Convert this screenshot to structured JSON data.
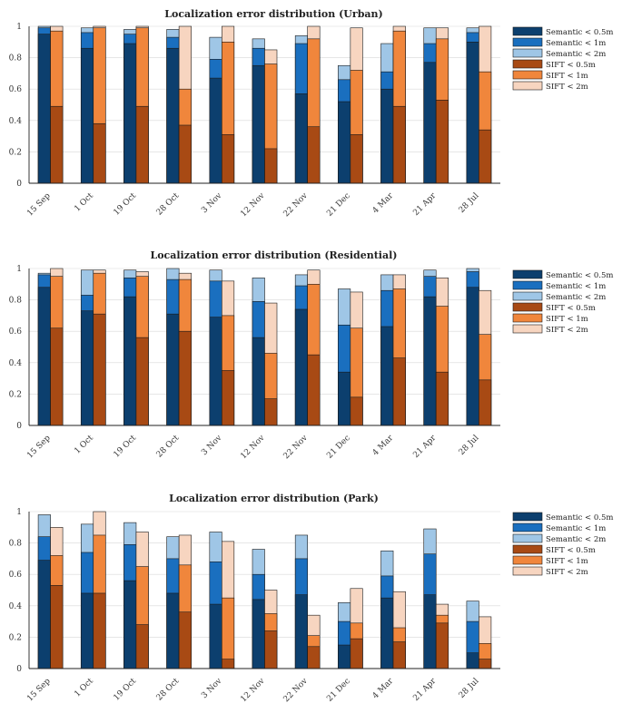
{
  "colors": {
    "semantic_05": "#0c3f6e",
    "semantic_1": "#1a6fbf",
    "semantic_2": "#9fc6e6",
    "sift_05": "#a84a14",
    "sift_1": "#f0863c",
    "sift_2": "#f7d5c0"
  },
  "legend_labels": [
    "Semantic < 0.5m",
    "Semantic < 1m",
    "Semantic < 2m",
    "SIFT < 0.5m",
    "SIFT < 1m",
    "SIFT < 2m"
  ],
  "chart_data": [
    {
      "type": "bar",
      "title": "Localization error distribution (Urban)",
      "categories": [
        "15 Sep",
        "1 Oct",
        "19 Oct",
        "28 Oct",
        "3 Nov",
        "12 Nov",
        "22 Nov",
        "21 Dec",
        "4 Mar",
        "21 Apr",
        "28 Jul"
      ],
      "ylim": [
        0,
        1
      ],
      "yticks": [
        "0",
        "0.2",
        "0.4",
        "0.6",
        "0.8",
        "1"
      ],
      "grid": true,
      "legend_position": "right",
      "series": [
        {
          "name": "Semantic < 0.5m",
          "values": [
            0.95,
            0.86,
            0.89,
            0.86,
            0.67,
            0.75,
            0.57,
            0.52,
            0.6,
            0.77,
            0.9
          ]
        },
        {
          "name": "Semantic < 1m",
          "values": [
            0.99,
            0.96,
            0.95,
            0.93,
            0.79,
            0.86,
            0.89,
            0.66,
            0.71,
            0.89,
            0.96
          ]
        },
        {
          "name": "Semantic < 2m",
          "values": [
            1.0,
            0.99,
            0.98,
            0.98,
            0.93,
            0.92,
            0.94,
            0.75,
            0.89,
            0.99,
            0.99
          ]
        },
        {
          "name": "SIFT < 0.5m",
          "values": [
            0.49,
            0.38,
            0.49,
            0.37,
            0.31,
            0.22,
            0.36,
            0.31,
            0.49,
            0.53,
            0.34
          ]
        },
        {
          "name": "SIFT < 1m",
          "values": [
            0.97,
            0.99,
            0.99,
            0.6,
            0.9,
            0.76,
            0.92,
            0.72,
            0.97,
            0.92,
            0.71
          ]
        },
        {
          "name": "SIFT < 2m",
          "values": [
            1.0,
            1.0,
            1.0,
            1.0,
            1.0,
            0.85,
            1.0,
            0.99,
            1.0,
            0.99,
            1.0
          ]
        }
      ]
    },
    {
      "type": "bar",
      "title": "Localization error distribution (Residential)",
      "categories": [
        "15 Sep",
        "1 Oct",
        "19 Oct",
        "28 Oct",
        "3 Nov",
        "12 Nov",
        "22 Nov",
        "21 Dec",
        "4 Mar",
        "21 Apr",
        "28 Jul"
      ],
      "ylim": [
        0,
        1
      ],
      "yticks": [
        "0",
        "0.2",
        "0.4",
        "0.6",
        "0.8",
        "1"
      ],
      "grid": true,
      "legend_position": "right",
      "series": [
        {
          "name": "Semantic < 0.5m",
          "values": [
            0.88,
            0.73,
            0.82,
            0.71,
            0.69,
            0.56,
            0.74,
            0.34,
            0.63,
            0.82,
            0.88
          ]
        },
        {
          "name": "Semantic < 1m",
          "values": [
            0.96,
            0.83,
            0.94,
            0.93,
            0.92,
            0.79,
            0.89,
            0.64,
            0.86,
            0.95,
            0.98
          ]
        },
        {
          "name": "Semantic < 2m",
          "values": [
            0.97,
            0.99,
            0.99,
            1.0,
            0.99,
            0.94,
            0.96,
            0.87,
            0.96,
            0.99,
            1.0
          ]
        },
        {
          "name": "SIFT < 0.5m",
          "values": [
            0.62,
            0.71,
            0.56,
            0.6,
            0.35,
            0.17,
            0.45,
            0.18,
            0.43,
            0.34,
            0.29
          ]
        },
        {
          "name": "SIFT < 1m",
          "values": [
            0.95,
            0.97,
            0.95,
            0.93,
            0.7,
            0.46,
            0.9,
            0.62,
            0.87,
            0.76,
            0.58
          ]
        },
        {
          "name": "SIFT < 2m",
          "values": [
            1.0,
            0.99,
            0.98,
            0.97,
            0.92,
            0.78,
            0.99,
            0.85,
            0.96,
            0.94,
            0.86
          ]
        }
      ]
    },
    {
      "type": "bar",
      "title": "Localization error distribution (Park)",
      "categories": [
        "15 Sep",
        "1 Oct",
        "19 Oct",
        "28 Oct",
        "3 Nov",
        "12 Nov",
        "22 Nov",
        "21 Dec",
        "4 Mar",
        "21 Apr",
        "28 Jul"
      ],
      "ylim": [
        0,
        1
      ],
      "yticks": [
        "0",
        "0.2",
        "0.4",
        "0.6",
        "0.8",
        "1"
      ],
      "grid": true,
      "legend_position": "right",
      "series": [
        {
          "name": "Semantic < 0.5m",
          "values": [
            0.69,
            0.48,
            0.56,
            0.48,
            0.41,
            0.44,
            0.47,
            0.15,
            0.45,
            0.47,
            0.1
          ]
        },
        {
          "name": "Semantic < 1m",
          "values": [
            0.84,
            0.74,
            0.79,
            0.7,
            0.68,
            0.6,
            0.7,
            0.3,
            0.59,
            0.73,
            0.3
          ]
        },
        {
          "name": "Semantic < 2m",
          "values": [
            0.98,
            0.92,
            0.93,
            0.84,
            0.87,
            0.76,
            0.85,
            0.42,
            0.75,
            0.89,
            0.43
          ]
        },
        {
          "name": "SIFT < 0.5m",
          "values": [
            0.53,
            0.48,
            0.28,
            0.36,
            0.06,
            0.24,
            0.14,
            0.19,
            0.17,
            0.29,
            0.06
          ]
        },
        {
          "name": "SIFT < 1m",
          "values": [
            0.72,
            0.85,
            0.65,
            0.66,
            0.45,
            0.35,
            0.21,
            0.29,
            0.26,
            0.34,
            0.16
          ]
        },
        {
          "name": "SIFT < 2m",
          "values": [
            0.9,
            1.0,
            0.87,
            0.85,
            0.81,
            0.5,
            0.34,
            0.51,
            0.49,
            0.41,
            0.33
          ]
        }
      ]
    }
  ]
}
